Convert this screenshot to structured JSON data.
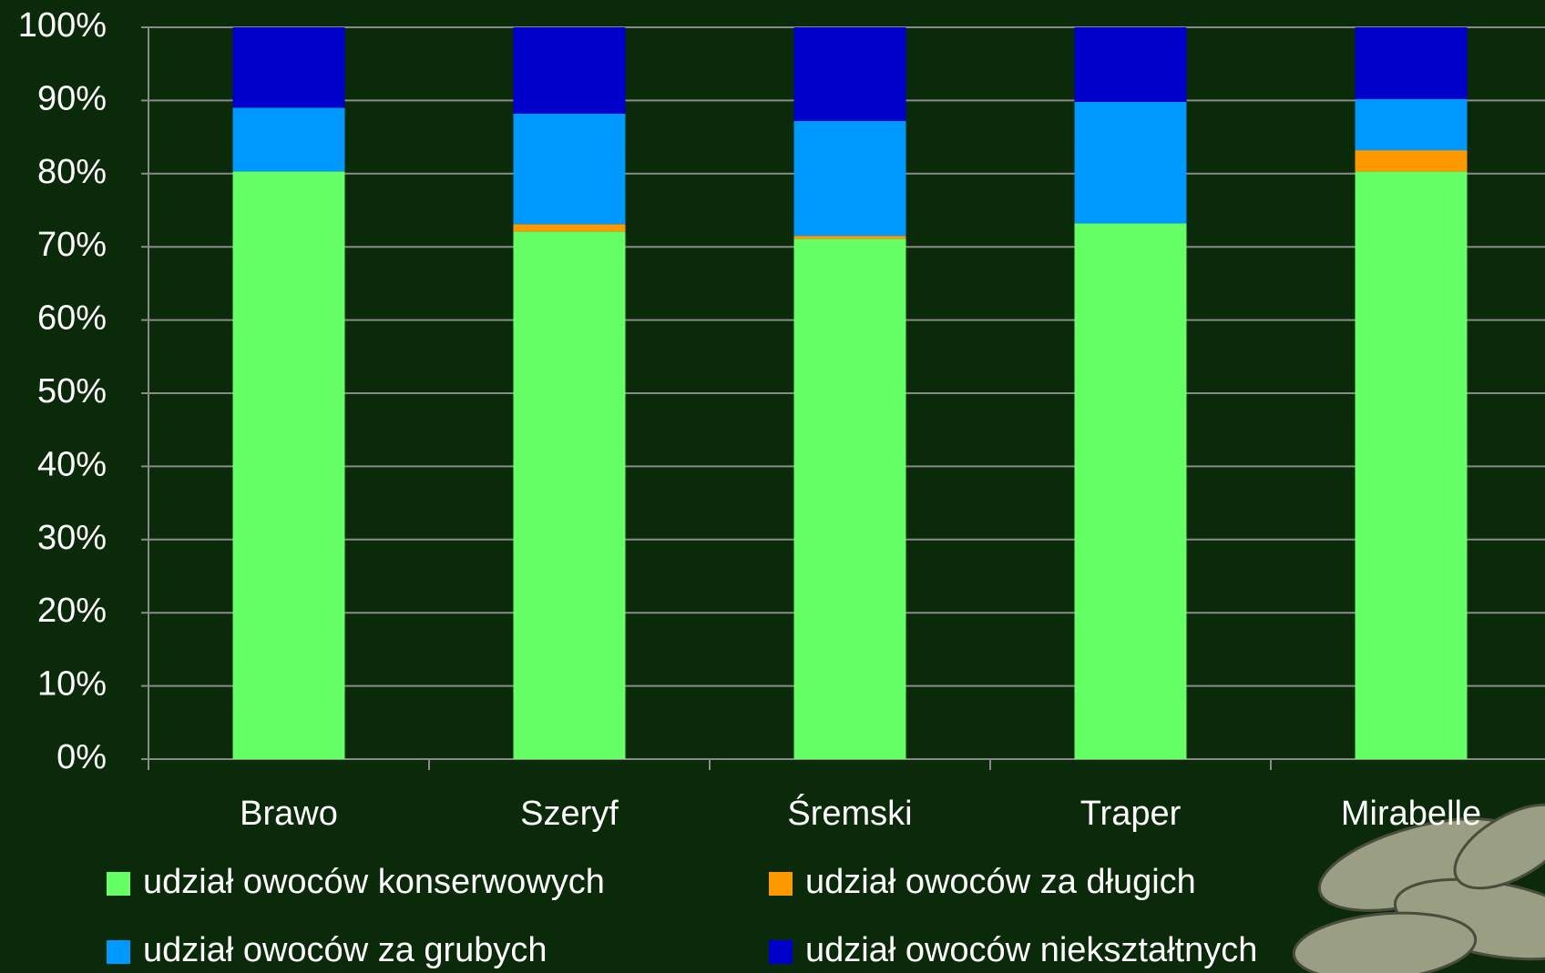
{
  "chart_data": {
    "type": "stacked-bar",
    "categories": [
      "Brawo",
      "Szeryf",
      "Śremski",
      "Traper",
      "Mirabelle"
    ],
    "series": [
      {
        "name": "udział owoców konserwowych",
        "color": "#66ff66",
        "values": [
          80.3,
          72.1,
          71.1,
          73.2,
          80.3
        ]
      },
      {
        "name": "udział owoców za długich",
        "color": "#ff9900",
        "values": [
          0,
          1.0,
          0.4,
          0,
          2.9
        ]
      },
      {
        "name": "udział owoców za grubych",
        "color": "#0099ff",
        "values": [
          8.7,
          15.1,
          15.7,
          16.6,
          7.0
        ]
      },
      {
        "name": "udział owoców niekształtnych",
        "color": "#0000cc",
        "values": [
          11.0,
          11.8,
          12.8,
          10.2,
          9.8
        ]
      }
    ],
    "ylim": [
      0,
      100
    ],
    "yticks": [
      {
        "value": 0,
        "label": "0%"
      },
      {
        "value": 10,
        "label": "10%"
      },
      {
        "value": 20,
        "label": "20%"
      },
      {
        "value": 30,
        "label": "30%"
      },
      {
        "value": 40,
        "label": "40%"
      },
      {
        "value": 50,
        "label": "50%"
      },
      {
        "value": 60,
        "label": "60%"
      },
      {
        "value": 70,
        "label": "70%"
      },
      {
        "value": 80,
        "label": "80%"
      },
      {
        "value": 90,
        "label": "90%"
      },
      {
        "value": 100,
        "label": "100%"
      }
    ],
    "grid": true
  }
}
